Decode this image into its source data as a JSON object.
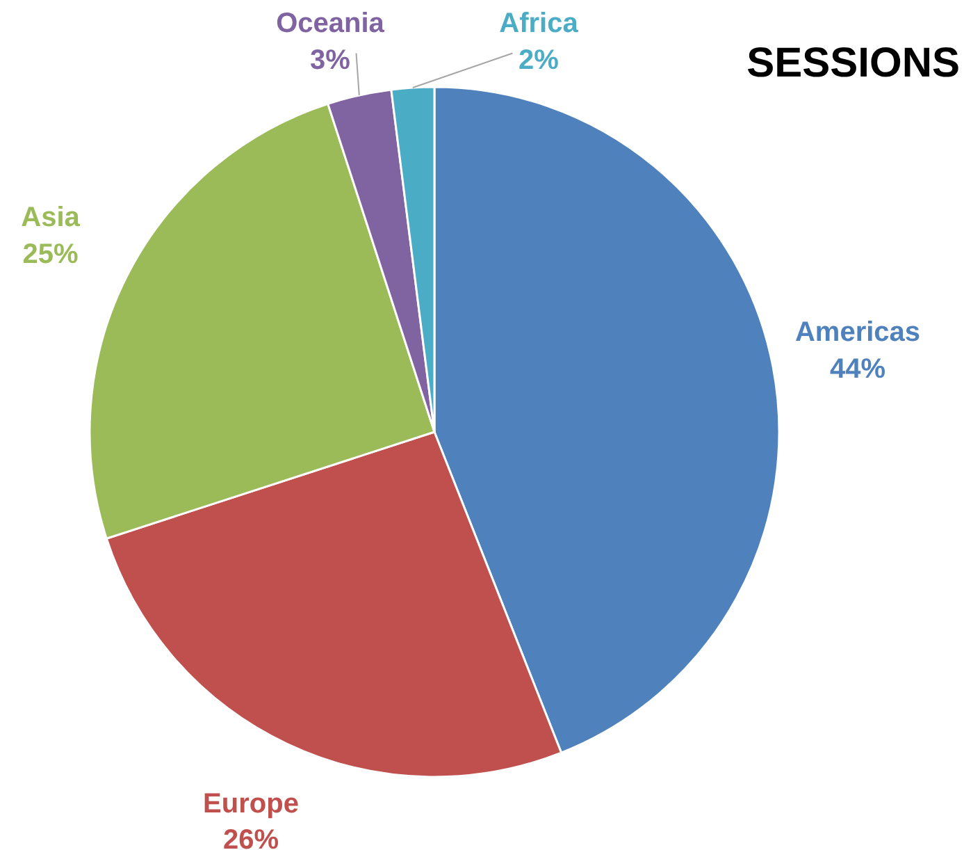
{
  "chart_data": {
    "type": "pie",
    "title": "SESSIONS",
    "categories": [
      "Americas",
      "Europe",
      "Asia",
      "Oceania",
      "Africa"
    ],
    "values": [
      44,
      26,
      25,
      3,
      2
    ],
    "value_labels": [
      "44%",
      "26%",
      "25%",
      "3%",
      "2%"
    ],
    "colors": [
      "#4f81bd",
      "#c0504d",
      "#9bbb59",
      "#8064a2",
      "#4bacc6"
    ]
  }
}
